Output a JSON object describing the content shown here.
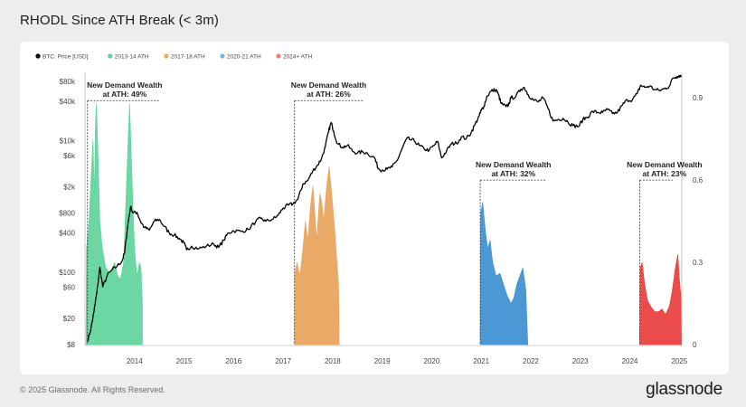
{
  "title": "RHODL Since ATH Break (< 3m)",
  "footer": {
    "copyright": "© 2025 Glassnode. All Rights Reserved.",
    "logo": "glassnode"
  },
  "chart_data": {
    "type": "line+area",
    "title": "RHODL Since ATH Break (< 3m)",
    "x_range": [
      2013.0,
      2025.05
    ],
    "x_ticks": [
      "2014",
      "2015",
      "2016",
      "2017",
      "2018",
      "2019",
      "2020",
      "2021",
      "2022",
      "2023",
      "2024",
      "2025"
    ],
    "y_left": {
      "label": "BTC: Price [USD]",
      "scale": "log",
      "range": [
        8,
        80000
      ],
      "ticks": [
        {
          "value": 80000,
          "label": "$80k"
        },
        {
          "value": 40000,
          "label": "$40k"
        },
        {
          "value": 10000,
          "label": "$10k"
        },
        {
          "value": 6000,
          "label": "$6k"
        },
        {
          "value": 2000,
          "label": "$2k"
        },
        {
          "value": 800,
          "label": "$800"
        },
        {
          "value": 400,
          "label": "$400"
        },
        {
          "value": 100,
          "label": "$100"
        },
        {
          "value": 60,
          "label": "$60"
        },
        {
          "value": 20,
          "label": "$20"
        },
        {
          "value": 8,
          "label": "$8"
        }
      ]
    },
    "y_right": {
      "scale": "linear",
      "range": [
        0,
        0.96
      ],
      "ticks": [
        {
          "value": 0,
          "label": "0"
        },
        {
          "value": 0.3,
          "label": "0.3"
        },
        {
          "value": 0.6,
          "label": "0.6"
        },
        {
          "value": 0.9,
          "label": "0.9"
        }
      ]
    },
    "legend": [
      {
        "name": "BTC: Price [USD]",
        "color": "#000000"
      },
      {
        "name": "2013-14 ATH",
        "color": "#5fd49a"
      },
      {
        "name": "2017-18 ATH",
        "color": "#f0a860"
      },
      {
        "name": "2020-21 ATH",
        "color": "#7ab2e0"
      },
      {
        "name": "2024+ ATH",
        "color": "#f08080"
      }
    ],
    "price_series": {
      "name": "BTC: Price [USD]",
      "points": [
        [
          2013.05,
          9
        ],
        [
          2013.12,
          14
        ],
        [
          2013.18,
          25
        ],
        [
          2013.24,
          50
        ],
        [
          2013.3,
          120
        ],
        [
          2013.36,
          60
        ],
        [
          2013.45,
          90
        ],
        [
          2013.55,
          110
        ],
        [
          2013.65,
          125
        ],
        [
          2013.75,
          150
        ],
        [
          2013.8,
          200
        ],
        [
          2013.86,
          500
        ],
        [
          2013.92,
          1000
        ],
        [
          2013.97,
          800
        ],
        [
          2014.05,
          820
        ],
        [
          2014.12,
          600
        ],
        [
          2014.2,
          480
        ],
        [
          2014.3,
          440
        ],
        [
          2014.4,
          600
        ],
        [
          2014.5,
          640
        ],
        [
          2014.6,
          500
        ],
        [
          2014.7,
          400
        ],
        [
          2014.8,
          370
        ],
        [
          2014.9,
          330
        ],
        [
          2015.0,
          280
        ],
        [
          2015.05,
          220
        ],
        [
          2015.15,
          250
        ],
        [
          2015.3,
          230
        ],
        [
          2015.45,
          250
        ],
        [
          2015.6,
          270
        ],
        [
          2015.7,
          240
        ],
        [
          2015.8,
          310
        ],
        [
          2015.9,
          400
        ],
        [
          2016.0,
          430
        ],
        [
          2016.15,
          420
        ],
        [
          2016.3,
          450
        ],
        [
          2016.45,
          600
        ],
        [
          2016.55,
          660
        ],
        [
          2016.65,
          600
        ],
        [
          2016.8,
          650
        ],
        [
          2016.9,
          740
        ],
        [
          2017.0,
          950
        ],
        [
          2017.1,
          1050
        ],
        [
          2017.2,
          1100
        ],
        [
          2017.3,
          1300
        ],
        [
          2017.4,
          2200
        ],
        [
          2017.5,
          2500
        ],
        [
          2017.6,
          3500
        ],
        [
          2017.7,
          4300
        ],
        [
          2017.78,
          5500
        ],
        [
          2017.85,
          8000
        ],
        [
          2017.92,
          14000
        ],
        [
          2017.97,
          19000
        ],
        [
          2018.02,
          14000
        ],
        [
          2018.1,
          9000
        ],
        [
          2018.2,
          8000
        ],
        [
          2018.3,
          8500
        ],
        [
          2018.4,
          7000
        ],
        [
          2018.5,
          6500
        ],
        [
          2018.6,
          6800
        ],
        [
          2018.7,
          6500
        ],
        [
          2018.85,
          5500
        ],
        [
          2018.92,
          3800
        ],
        [
          2019.0,
          3600
        ],
        [
          2019.1,
          3700
        ],
        [
          2019.2,
          4000
        ],
        [
          2019.3,
          5000
        ],
        [
          2019.4,
          7500
        ],
        [
          2019.5,
          11000
        ],
        [
          2019.55,
          10500
        ],
        [
          2019.65,
          10000
        ],
        [
          2019.75,
          8500
        ],
        [
          2019.85,
          7500
        ],
        [
          2019.95,
          7200
        ],
        [
          2020.05,
          8500
        ],
        [
          2020.12,
          9800
        ],
        [
          2020.2,
          5500
        ],
        [
          2020.3,
          7000
        ],
        [
          2020.4,
          9000
        ],
        [
          2020.5,
          9200
        ],
        [
          2020.6,
          11500
        ],
        [
          2020.7,
          10800
        ],
        [
          2020.8,
          13500
        ],
        [
          2020.88,
          18000
        ],
        [
          2020.96,
          24000
        ],
        [
          2021.0,
          29000
        ],
        [
          2021.05,
          33000
        ],
        [
          2021.12,
          48000
        ],
        [
          2021.2,
          57000
        ],
        [
          2021.3,
          60000
        ],
        [
          2021.35,
          50000
        ],
        [
          2021.4,
          37000
        ],
        [
          2021.5,
          33000
        ],
        [
          2021.55,
          35000
        ],
        [
          2021.6,
          45000
        ],
        [
          2021.7,
          47000
        ],
        [
          2021.8,
          61000
        ],
        [
          2021.87,
          65000
        ],
        [
          2021.95,
          50000
        ],
        [
          2022.05,
          42000
        ],
        [
          2022.15,
          39000
        ],
        [
          2022.25,
          45000
        ],
        [
          2022.35,
          31000
        ],
        [
          2022.45,
          20000
        ],
        [
          2022.55,
          21000
        ],
        [
          2022.65,
          22000
        ],
        [
          2022.75,
          19500
        ],
        [
          2022.85,
          17000
        ],
        [
          2022.97,
          16600
        ],
        [
          2023.05,
          21000
        ],
        [
          2023.15,
          23000
        ],
        [
          2023.25,
          28000
        ],
        [
          2023.35,
          27000
        ],
        [
          2023.45,
          27000
        ],
        [
          2023.55,
          30000
        ],
        [
          2023.65,
          26000
        ],
        [
          2023.75,
          27000
        ],
        [
          2023.85,
          35000
        ],
        [
          2023.95,
          42000
        ],
        [
          2024.05,
          42000
        ],
        [
          2024.15,
          52000
        ],
        [
          2024.22,
          70000
        ],
        [
          2024.3,
          65000
        ],
        [
          2024.4,
          68000
        ],
        [
          2024.5,
          60000
        ],
        [
          2024.6,
          58000
        ],
        [
          2024.7,
          62000
        ],
        [
          2024.8,
          68000
        ],
        [
          2024.87,
          90000
        ],
        [
          2024.95,
          95000
        ],
        [
          2025.0,
          98000
        ],
        [
          2025.05,
          96000
        ]
      ]
    },
    "rhodl_series": [
      {
        "name": "2013-14 ATH",
        "color": "#5fd49a",
        "points": [
          [
            2013.02,
            0
          ],
          [
            2013.03,
            0.35
          ],
          [
            2013.08,
            0.45
          ],
          [
            2013.12,
            0.6
          ],
          [
            2013.16,
            0.75
          ],
          [
            2013.19,
            0.55
          ],
          [
            2013.21,
            0.8
          ],
          [
            2013.23,
            0.88
          ],
          [
            2013.26,
            0.72
          ],
          [
            2013.3,
            0.45
          ],
          [
            2013.35,
            0.35
          ],
          [
            2013.42,
            0.28
          ],
          [
            2013.5,
            0.26
          ],
          [
            2013.6,
            0.3
          ],
          [
            2013.66,
            0.25
          ],
          [
            2013.72,
            0.24
          ],
          [
            2013.78,
            0.3
          ],
          [
            2013.83,
            0.55
          ],
          [
            2013.87,
            0.75
          ],
          [
            2013.9,
            0.88
          ],
          [
            2013.93,
            0.72
          ],
          [
            2013.97,
            0.5
          ],
          [
            2014.0,
            0.35
          ],
          [
            2014.05,
            0.25
          ],
          [
            2014.1,
            0.3
          ],
          [
            2014.13,
            0.28
          ],
          [
            2014.16,
            0.15
          ],
          [
            2014.16,
            0
          ]
        ]
      },
      {
        "name": "2017-18 ATH",
        "color": "#e8a25a",
        "points": [
          [
            2017.23,
            0
          ],
          [
            2017.24,
            0.26
          ],
          [
            2017.28,
            0.3
          ],
          [
            2017.34,
            0.25
          ],
          [
            2017.4,
            0.35
          ],
          [
            2017.45,
            0.45
          ],
          [
            2017.5,
            0.38
          ],
          [
            2017.55,
            0.5
          ],
          [
            2017.6,
            0.58
          ],
          [
            2017.64,
            0.48
          ],
          [
            2017.68,
            0.38
          ],
          [
            2017.74,
            0.55
          ],
          [
            2017.78,
            0.52
          ],
          [
            2017.82,
            0.45
          ],
          [
            2017.88,
            0.58
          ],
          [
            2017.93,
            0.65
          ],
          [
            2017.98,
            0.55
          ],
          [
            2018.03,
            0.45
          ],
          [
            2018.08,
            0.32
          ],
          [
            2018.12,
            0.22
          ],
          [
            2018.13,
            0
          ]
        ]
      },
      {
        "name": "2020-21 ATH",
        "color": "#3d8fd0",
        "points": [
          [
            2020.98,
            0
          ],
          [
            2020.99,
            0.48
          ],
          [
            2021.03,
            0.52
          ],
          [
            2021.08,
            0.42
          ],
          [
            2021.13,
            0.35
          ],
          [
            2021.18,
            0.38
          ],
          [
            2021.23,
            0.3
          ],
          [
            2021.3,
            0.25
          ],
          [
            2021.38,
            0.26
          ],
          [
            2021.45,
            0.22
          ],
          [
            2021.52,
            0.18
          ],
          [
            2021.6,
            0.15
          ],
          [
            2021.66,
            0.17
          ],
          [
            2021.72,
            0.22
          ],
          [
            2021.78,
            0.25
          ],
          [
            2021.84,
            0.28
          ],
          [
            2021.9,
            0.2
          ],
          [
            2021.94,
            0
          ]
        ]
      },
      {
        "name": "2024+ ATH",
        "color": "#e83c3c",
        "points": [
          [
            2024.2,
            0
          ],
          [
            2024.21,
            0.28
          ],
          [
            2024.25,
            0.3
          ],
          [
            2024.3,
            0.22
          ],
          [
            2024.36,
            0.16
          ],
          [
            2024.42,
            0.14
          ],
          [
            2024.5,
            0.12
          ],
          [
            2024.58,
            0.12
          ],
          [
            2024.65,
            0.13
          ],
          [
            2024.72,
            0.11
          ],
          [
            2024.8,
            0.14
          ],
          [
            2024.86,
            0.2
          ],
          [
            2024.92,
            0.28
          ],
          [
            2024.97,
            0.33
          ],
          [
            2025.0,
            0.24
          ],
          [
            2025.03,
            0.18
          ],
          [
            2025.04,
            0
          ]
        ]
      }
    ],
    "annotations": [
      {
        "line1": "New Demand Wealth",
        "line2": "at ATH: 49%",
        "x_start": 2013.05,
        "x_end": 2014.52,
        "x_text": 2013.8,
        "level": 0.89
      },
      {
        "line1": "New Demand Wealth",
        "line2": "at ATH: 26%",
        "x_start": 2017.23,
        "x_end": 2018.62,
        "x_text": 2017.92,
        "level": 0.89
      },
      {
        "line1": "New Demand Wealth",
        "line2": "at ATH: 32%",
        "x_start": 2020.98,
        "x_end": 2022.3,
        "x_text": 2021.65,
        "level": 0.6
      },
      {
        "line1": "New Demand Wealth",
        "line2": "at ATH: 23%",
        "x_start": 2024.2,
        "x_end": 2024.87,
        "x_text": 2024.7,
        "level": 0.6
      }
    ]
  }
}
